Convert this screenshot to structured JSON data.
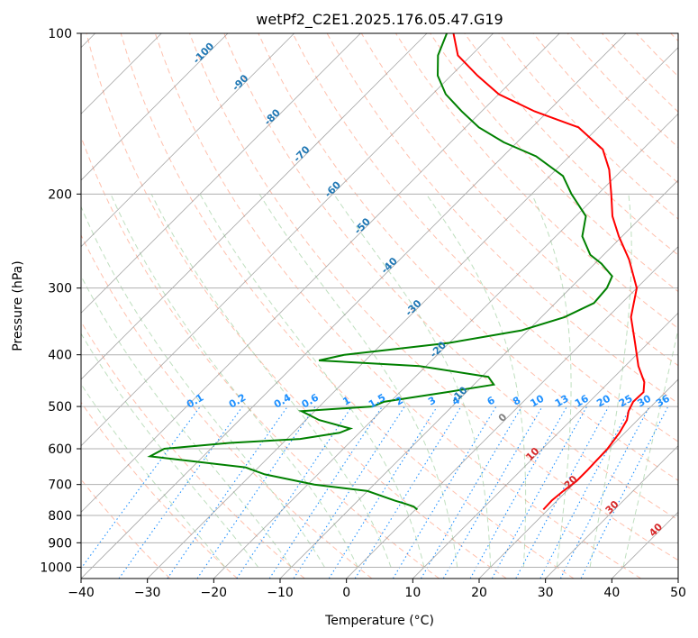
{
  "chart_data": {
    "type": "line",
    "title": "wetPf2_C2E1.2025.176.05.47.G19",
    "xlabel": "Temperature (°C)",
    "ylabel": "Pressure (hPa)",
    "xlim": [
      -40,
      50
    ],
    "ylim": [
      1050,
      100
    ],
    "y_scale": "log",
    "x_ticks": [
      -40,
      -30,
      -20,
      -10,
      0,
      10,
      20,
      30,
      40,
      50
    ],
    "y_ticks": [
      100,
      200,
      300,
      400,
      500,
      600,
      700,
      800,
      900,
      1000
    ],
    "grid": true,
    "skew": "skew-T log-P",
    "series": [
      {
        "color": "#ff0000",
        "x_unit": "degC",
        "points": [
          [
            19.3,
            780
          ],
          [
            19.2,
            750
          ],
          [
            19.5,
            720
          ],
          [
            20.0,
            690
          ],
          [
            20.0,
            660
          ],
          [
            19.9,
            630
          ],
          [
            19.8,
            600
          ],
          [
            19.2,
            560
          ],
          [
            18.4,
            530
          ],
          [
            17.3,
            510
          ],
          [
            16.6,
            490
          ],
          [
            16.7,
            470
          ],
          [
            15.3,
            450
          ],
          [
            12.0,
            420
          ],
          [
            8.0,
            380
          ],
          [
            3.5,
            340
          ],
          [
            0.0,
            300
          ],
          [
            -5.5,
            265
          ],
          [
            -10.5,
            240
          ],
          [
            -14.5,
            220
          ],
          [
            -18.0,
            200
          ],
          [
            -22.0,
            180
          ],
          [
            -26.0,
            165
          ],
          [
            -33.0,
            150
          ],
          [
            -42.0,
            140
          ],
          [
            -50.0,
            130
          ],
          [
            -56.0,
            120
          ],
          [
            -62.0,
            110
          ],
          [
            -66.0,
            100
          ]
        ]
      },
      {
        "color": "#008000",
        "x_unit": "degC",
        "points": [
          [
            0.3,
            780
          ],
          [
            -0.7,
            770
          ],
          [
            -2.5,
            760
          ],
          [
            -4.5,
            750
          ],
          [
            -10.0,
            720
          ],
          [
            -19.0,
            700
          ],
          [
            -28.0,
            670
          ],
          [
            -32.0,
            650
          ],
          [
            -48.0,
            620
          ],
          [
            -47.0,
            600
          ],
          [
            -38.0,
            585
          ],
          [
            -28.0,
            575
          ],
          [
            -23.0,
            560
          ],
          [
            -22.0,
            550
          ],
          [
            -28.0,
            530
          ],
          [
            -32.0,
            510
          ],
          [
            -22.0,
            500
          ],
          [
            -21.0,
            490
          ],
          [
            -13.0,
            470
          ],
          [
            -7.0,
            455
          ],
          [
            -9.0,
            440
          ],
          [
            -21.0,
            420
          ],
          [
            -37.0,
            410
          ],
          [
            -34.0,
            400
          ],
          [
            -20.0,
            380
          ],
          [
            -11.0,
            360
          ],
          [
            -6.5,
            340
          ],
          [
            -4.2,
            320
          ],
          [
            -4.5,
            300
          ],
          [
            -5.5,
            285
          ],
          [
            -9.0,
            270
          ],
          [
            -12.0,
            260
          ],
          [
            -16.0,
            240
          ],
          [
            -18.5,
            220
          ],
          [
            -24.0,
            200
          ],
          [
            -28.0,
            185
          ],
          [
            -35.0,
            170
          ],
          [
            -42.0,
            160
          ],
          [
            -48.0,
            150
          ],
          [
            -53.0,
            140
          ],
          [
            -58.0,
            130
          ],
          [
            -62.0,
            120
          ],
          [
            -65.0,
            110
          ],
          [
            -67.0,
            100
          ]
        ]
      }
    ],
    "isotherm_labels": [
      {
        "text": "-100",
        "color": "#1f77b4"
      },
      {
        "text": "-90",
        "color": "#1f77b4"
      },
      {
        "text": "-80",
        "color": "#1f77b4"
      },
      {
        "text": "-70",
        "color": "#1f77b4"
      },
      {
        "text": "-60",
        "color": "#1f77b4"
      },
      {
        "text": "-50",
        "color": "#1f77b4"
      },
      {
        "text": "-40",
        "color": "#1f77b4"
      },
      {
        "text": "-30",
        "color": "#1f77b4"
      },
      {
        "text": "-20",
        "color": "#1f77b4"
      },
      {
        "text": "-10",
        "color": "#1f77b4"
      }
    ],
    "mixing_ratio_labels": [
      "0.1",
      "0.2",
      "0.4",
      "0.6",
      "1",
      "1.5",
      "2",
      "3",
      "4",
      "6",
      "8",
      "10",
      "13",
      "16",
      "20",
      "25",
      "30",
      "36"
    ],
    "mixing_ratio_color": "#1e90ff",
    "mixing_ratio_values": [
      0.1,
      0.2,
      0.4,
      0.6,
      1,
      1.5,
      2,
      3,
      4,
      6,
      8,
      10,
      13,
      16,
      20,
      25,
      30,
      36
    ],
    "isotherm_values": [
      -100,
      -90,
      -80,
      -70,
      -60,
      -50,
      -40,
      -30,
      -20,
      -10
    ],
    "warm_isotherm_labels": [
      {
        "text": "0",
        "color": "#808080",
        "value": 0
      },
      {
        "text": "10",
        "color": "#d62728",
        "value": 10
      },
      {
        "text": "20",
        "color": "#d62728",
        "value": 20
      },
      {
        "text": "30",
        "color": "#d62728",
        "value": 30
      },
      {
        "text": "40",
        "color": "#d62728",
        "value": 40
      }
    ],
    "colors": {
      "grid": "#b0b0b0",
      "isotherm": "#808080",
      "dry_adiabat": "#ff8c69",
      "moist_adiabat": "#7fbf7f",
      "mixing_ratio": "#1e90ff",
      "temperature": "#ff0000",
      "dewpoint": "#008000"
    }
  }
}
